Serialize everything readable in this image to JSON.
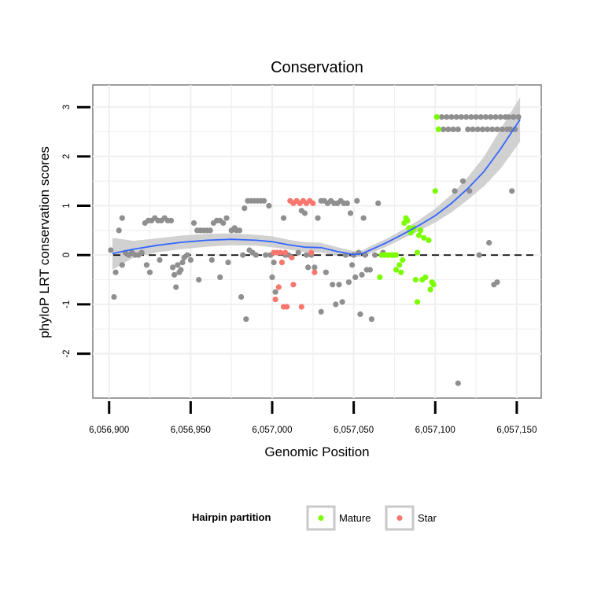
{
  "chart_data": {
    "type": "scatter",
    "title": "Conservation",
    "xlabel": "Genomic Position",
    "ylabel": "phyloP LRT conservation scores",
    "xlim": [
      6056890,
      6057165
    ],
    "ylim": [
      -2.9,
      3.45
    ],
    "x_ticks": [
      6056900,
      6056950,
      6057000,
      6057050,
      6057100,
      6057150
    ],
    "x_tick_labels": [
      "6,056,900",
      "6,056,950",
      "6,057,000",
      "6,057,050",
      "6,057,100",
      "6,057,150"
    ],
    "y_ticks": [
      -2,
      -1,
      0,
      1,
      2,
      3
    ],
    "y_tick_labels": [
      "-2",
      "-1",
      "0",
      "1",
      "2",
      "3"
    ],
    "grid": true,
    "reference_line": {
      "y": 0,
      "style": "dashed"
    },
    "legend": {
      "title": "Hairpin partition",
      "position": "bottom",
      "entries": [
        {
          "label": "Mature",
          "color": "#7cfc00"
        },
        {
          "label": "Star",
          "color": "#f8766d"
        }
      ]
    },
    "colors": {
      "other": "#8f8f8f",
      "mature": "#7cfc00",
      "star": "#f8766d",
      "smooth": "#3366ff",
      "band": "#c9c9c9"
    },
    "series": [
      {
        "name": "Other",
        "color": "#8f8f8f",
        "points": [
          [
            6056901,
            0.1
          ],
          [
            6056903,
            -0.85
          ],
          [
            6056904,
            -0.35
          ],
          [
            6056906,
            0.5
          ],
          [
            6056908,
            0.75
          ],
          [
            6056908,
            -0.2
          ],
          [
            6056910,
            0.05
          ],
          [
            6056912,
            0.0
          ],
          [
            6056914,
            0.05
          ],
          [
            6056916,
            0.0
          ],
          [
            6056918,
            0.0
          ],
          [
            6056920,
            0.05
          ],
          [
            6056922,
            0.65
          ],
          [
            6056923,
            -0.2
          ],
          [
            6056924,
            0.7
          ],
          [
            6056925,
            -0.35
          ],
          [
            6056926,
            0.7
          ],
          [
            6056928,
            0.75
          ],
          [
            6056930,
            0.7
          ],
          [
            6056931,
            -0.1
          ],
          [
            6056932,
            0.7
          ],
          [
            6056934,
            0.75
          ],
          [
            6056936,
            0.7
          ],
          [
            6056938,
            0.7
          ],
          [
            6056939,
            -0.25
          ],
          [
            6056940,
            -0.4
          ],
          [
            6056941,
            -0.65
          ],
          [
            6056942,
            -0.2
          ],
          [
            6056943,
            -0.35
          ],
          [
            6056944,
            -0.3
          ],
          [
            6056945,
            -0.15
          ],
          [
            6056946,
            -0.05
          ],
          [
            6056948,
            0.0
          ],
          [
            6056950,
            -0.1
          ],
          [
            6056952,
            0.65
          ],
          [
            6056954,
            0.5
          ],
          [
            6056955,
            -0.5
          ],
          [
            6056956,
            0.5
          ],
          [
            6056958,
            0.5
          ],
          [
            6056960,
            0.5
          ],
          [
            6056962,
            0.5
          ],
          [
            6056963,
            -0.1
          ],
          [
            6056964,
            0.65
          ],
          [
            6056966,
            0.7
          ],
          [
            6056968,
            -0.45
          ],
          [
            6056968,
            0.7
          ],
          [
            6056970,
            0.65
          ],
          [
            6056972,
            0.75
          ],
          [
            6056973,
            -0.15
          ],
          [
            6056975,
            0.5
          ],
          [
            6056977,
            0.55
          ],
          [
            6056978,
            0.5
          ],
          [
            6056980,
            0.5
          ],
          [
            6056981,
            -0.85
          ],
          [
            6056982,
            0.0
          ],
          [
            6056983,
            0.95
          ],
          [
            6056984,
            -1.3
          ],
          [
            6056985,
            1.1
          ],
          [
            6056986,
            0.1
          ],
          [
            6056987,
            1.1
          ],
          [
            6056988,
            0.05
          ],
          [
            6056989,
            1.1
          ],
          [
            6056990,
            0.0
          ],
          [
            6056991,
            1.1
          ],
          [
            6056993,
            1.1
          ],
          [
            6056995,
            1.1
          ],
          [
            6056996,
            0.0
          ],
          [
            6056998,
            1.0
          ],
          [
            6056999,
            0.0
          ],
          [
            6057000,
            -0.45
          ],
          [
            6057001,
            -0.15
          ],
          [
            6057002,
            -0.75
          ],
          [
            6057007,
            0.75
          ],
          [
            6057008,
            0.0
          ],
          [
            6057010,
            0.0
          ],
          [
            6057016,
            0.05
          ],
          [
            6057018,
            0.9
          ],
          [
            6057020,
            0.85
          ],
          [
            6057021,
            0.0
          ],
          [
            6057022,
            -0.25
          ],
          [
            6057024,
            0.0
          ],
          [
            6057026,
            -0.25
          ],
          [
            6057028,
            0.75
          ],
          [
            6057030,
            1.1
          ],
          [
            6057030,
            -1.15
          ],
          [
            6057032,
            1.1
          ],
          [
            6057033,
            -0.35
          ],
          [
            6057034,
            1.05
          ],
          [
            6057036,
            1.1
          ],
          [
            6057037,
            -0.6
          ],
          [
            6057038,
            1.05
          ],
          [
            6057039,
            -1.0
          ],
          [
            6057040,
            1.05
          ],
          [
            6057041,
            -0.6
          ],
          [
            6057042,
            1.1
          ],
          [
            6057043,
            -0.95
          ],
          [
            6057044,
            1.05
          ],
          [
            6057045,
            0.0
          ],
          [
            6057046,
            1.05
          ],
          [
            6057047,
            -0.55
          ],
          [
            6057048,
            0.85
          ],
          [
            6057049,
            -0.2
          ],
          [
            6057050,
            0.0
          ],
          [
            6057051,
            -0.45
          ],
          [
            6057052,
            1.1
          ],
          [
            6057053,
            0.05
          ],
          [
            6057054,
            -1.2
          ],
          [
            6057055,
            -0.4
          ],
          [
            6057056,
            0.75
          ],
          [
            6057057,
            0.0
          ],
          [
            6057058,
            -0.3
          ],
          [
            6057060,
            -0.3
          ],
          [
            6057061,
            -1.3
          ],
          [
            6057063,
            0.0
          ],
          [
            6057065,
            1.05
          ],
          [
            6057068,
            0.05
          ],
          [
            6057101,
            2.8
          ],
          [
            6057104,
            2.8
          ],
          [
            6057105,
            2.55
          ],
          [
            6057107,
            2.8
          ],
          [
            6057108,
            2.55
          ],
          [
            6057110,
            2.8
          ],
          [
            6057111,
            2.55
          ],
          [
            6057112,
            1.3
          ],
          [
            6057113,
            2.8
          ],
          [
            6057114,
            2.55
          ],
          [
            6057114,
            -2.6
          ],
          [
            6057116,
            2.8
          ],
          [
            6057117,
            1.5
          ],
          [
            6057119,
            2.8
          ],
          [
            6057120,
            2.55
          ],
          [
            6057121,
            1.3
          ],
          [
            6057122,
            2.8
          ],
          [
            6057123,
            2.55
          ],
          [
            6057125,
            2.8
          ],
          [
            6057126,
            2.55
          ],
          [
            6057127,
            0.0
          ],
          [
            6057128,
            2.8
          ],
          [
            6057129,
            2.55
          ],
          [
            6057131,
            2.8
          ],
          [
            6057132,
            2.55
          ],
          [
            6057133,
            0.25
          ],
          [
            6057134,
            2.8
          ],
          [
            6057135,
            2.55
          ],
          [
            6057136,
            -0.6
          ],
          [
            6057137,
            2.8
          ],
          [
            6057138,
            -0.55
          ],
          [
            6057138,
            2.55
          ],
          [
            6057140,
            2.8
          ],
          [
            6057141,
            2.55
          ],
          [
            6057143,
            2.8
          ],
          [
            6057144,
            2.55
          ],
          [
            6057145,
            2.8
          ],
          [
            6057146,
            2.55
          ],
          [
            6057147,
            1.3
          ],
          [
            6057148,
            2.8
          ],
          [
            6057149,
            2.55
          ],
          [
            6057151,
            2.8
          ]
        ]
      },
      {
        "name": "Mature",
        "color": "#7cfc00",
        "points": [
          [
            6057066,
            -0.45
          ],
          [
            6057067,
            0.0
          ],
          [
            6057069,
            0.0
          ],
          [
            6057071,
            0.0
          ],
          [
            6057073,
            0.0
          ],
          [
            6057074,
            0.0
          ],
          [
            6057076,
            0.0
          ],
          [
            6057076,
            -0.3
          ],
          [
            6057078,
            -0.2
          ],
          [
            6057079,
            -0.35
          ],
          [
            6057080,
            -0.1
          ],
          [
            6057081,
            0.65
          ],
          [
            6057082,
            0.75
          ],
          [
            6057083,
            0.7
          ],
          [
            6057084,
            0.55
          ],
          [
            6057085,
            0.45
          ],
          [
            6057086,
            0.5
          ],
          [
            6057087,
            0.55
          ],
          [
            6057088,
            -0.5
          ],
          [
            6057089,
            0.05
          ],
          [
            6057089,
            -0.95
          ],
          [
            6057090,
            0.4
          ],
          [
            6057091,
            0.5
          ],
          [
            6057092,
            -0.5
          ],
          [
            6057093,
            0.35
          ],
          [
            6057094,
            -0.45
          ],
          [
            6057096,
            0.3
          ],
          [
            6057097,
            -0.7
          ],
          [
            6057098,
            -0.55
          ],
          [
            6057099,
            -0.6
          ],
          [
            6057100,
            1.3
          ],
          [
            6057101,
            2.8
          ],
          [
            6057102,
            2.55
          ]
        ]
      },
      {
        "name": "Star",
        "color": "#f8766d",
        "points": [
          [
            6057001,
            0.05
          ],
          [
            6057002,
            -0.9
          ],
          [
            6057003,
            0.05
          ],
          [
            6057004,
            -0.65
          ],
          [
            6057005,
            0.05
          ],
          [
            6057006,
            -0.15
          ],
          [
            6057007,
            -1.05
          ],
          [
            6057008,
            0.05
          ],
          [
            6057009,
            -1.05
          ],
          [
            6057011,
            1.1
          ],
          [
            6057012,
            -0.05
          ],
          [
            6057013,
            1.05
          ],
          [
            6057013,
            -0.6
          ],
          [
            6057015,
            1.1
          ],
          [
            6057017,
            1.05
          ],
          [
            6057018,
            -1.05
          ],
          [
            6057019,
            1.1
          ],
          [
            6057021,
            1.05
          ],
          [
            6057023,
            1.1
          ],
          [
            6057024,
            0.05
          ],
          [
            6057025,
            1.05
          ],
          [
            6057026,
            -0.35
          ]
        ]
      }
    ],
    "smooth": {
      "name": "loess fit",
      "color": "#3366ff",
      "x": [
        6056902,
        6056915,
        6056930,
        6056945,
        6056960,
        6056975,
        6056990,
        6057000,
        6057010,
        6057020,
        6057030,
        6057040,
        6057050,
        6057055,
        6057060,
        6057070,
        6057080,
        6057090,
        6057100,
        6057110,
        6057120,
        6057130,
        6057140,
        6057152
      ],
      "y": [
        0.03,
        0.12,
        0.2,
        0.26,
        0.3,
        0.32,
        0.3,
        0.27,
        0.21,
        0.16,
        0.15,
        0.07,
        0.01,
        0.03,
        0.1,
        0.25,
        0.42,
        0.6,
        0.8,
        1.05,
        1.35,
        1.7,
        2.15,
        2.75
      ],
      "lower": [
        -0.3,
        -0.05,
        0.06,
        0.12,
        0.17,
        0.2,
        0.19,
        0.16,
        0.11,
        0.06,
        0.05,
        -0.02,
        -0.05,
        -0.03,
        0.03,
        0.17,
        0.33,
        0.49,
        0.66,
        0.87,
        1.12,
        1.4,
        1.75,
        2.3
      ],
      "upper": [
        0.35,
        0.29,
        0.34,
        0.4,
        0.43,
        0.44,
        0.41,
        0.38,
        0.31,
        0.26,
        0.25,
        0.16,
        0.08,
        0.09,
        0.18,
        0.33,
        0.51,
        0.71,
        0.94,
        1.23,
        1.58,
        2.0,
        2.55,
        3.2
      ]
    }
  }
}
